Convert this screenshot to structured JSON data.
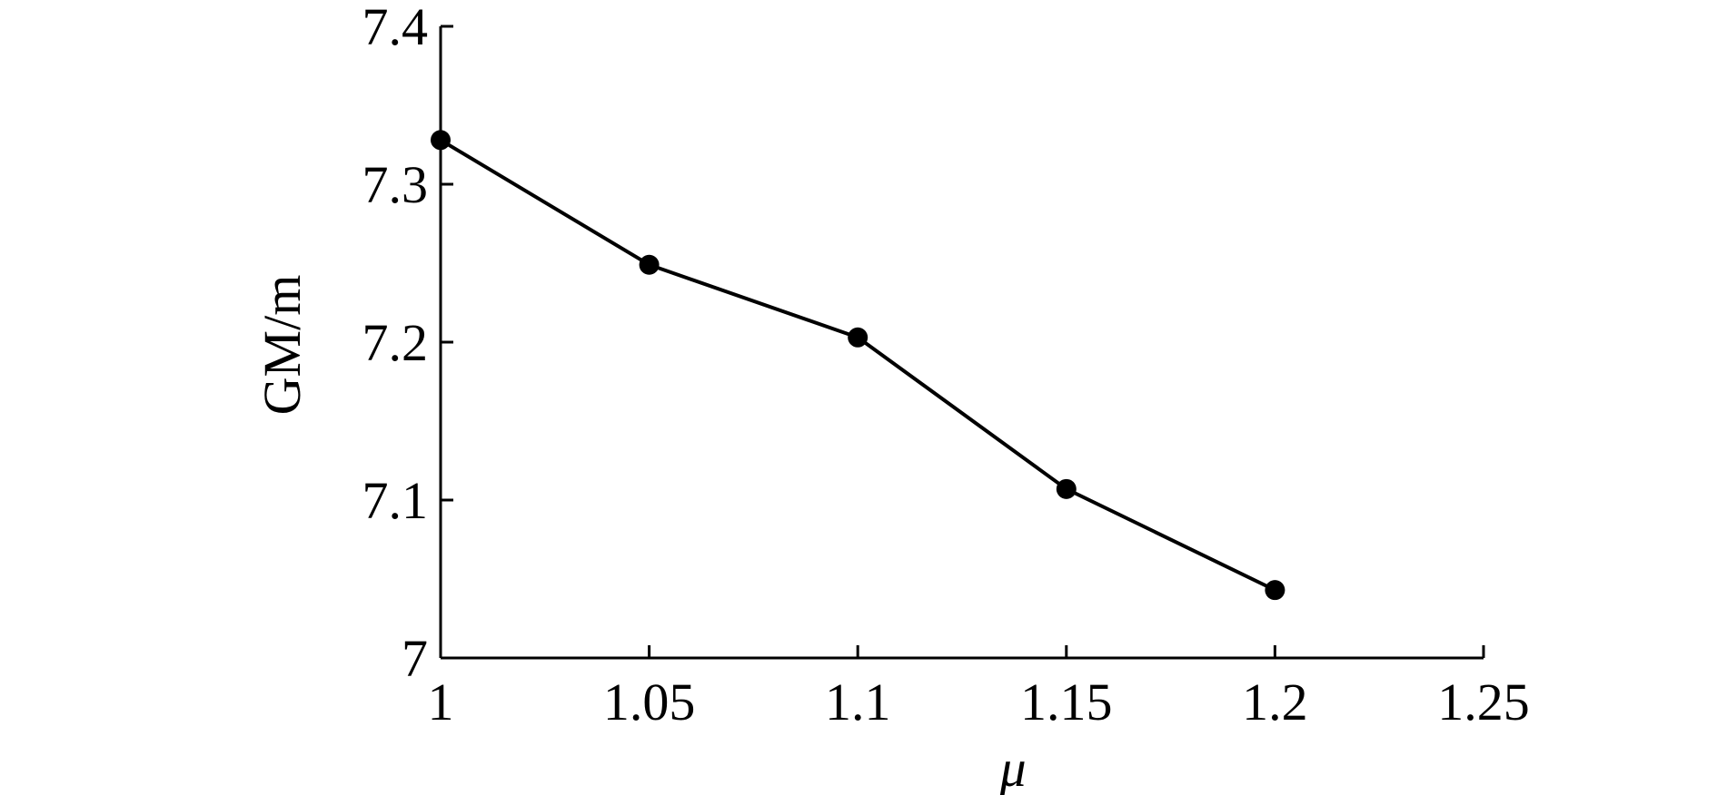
{
  "chart_data": {
    "type": "line",
    "x_label": "μ",
    "y_label": "GM/m",
    "x": [
      1,
      1.05,
      1.1,
      1.15,
      1.2
    ],
    "series": [
      {
        "name": "GM",
        "color": "#000000",
        "values": [
          7.328,
          7.249,
          7.203,
          7.107,
          7.043
        ]
      }
    ],
    "xlim": [
      1,
      1.25
    ],
    "xticks": [
      1,
      1.05,
      1.1,
      1.15,
      1.2,
      1.25
    ],
    "ylim": [
      7,
      7.4
    ],
    "yticks": [
      7,
      7.1,
      7.2,
      7.3,
      7.4
    ],
    "grid": false,
    "legend": false
  }
}
